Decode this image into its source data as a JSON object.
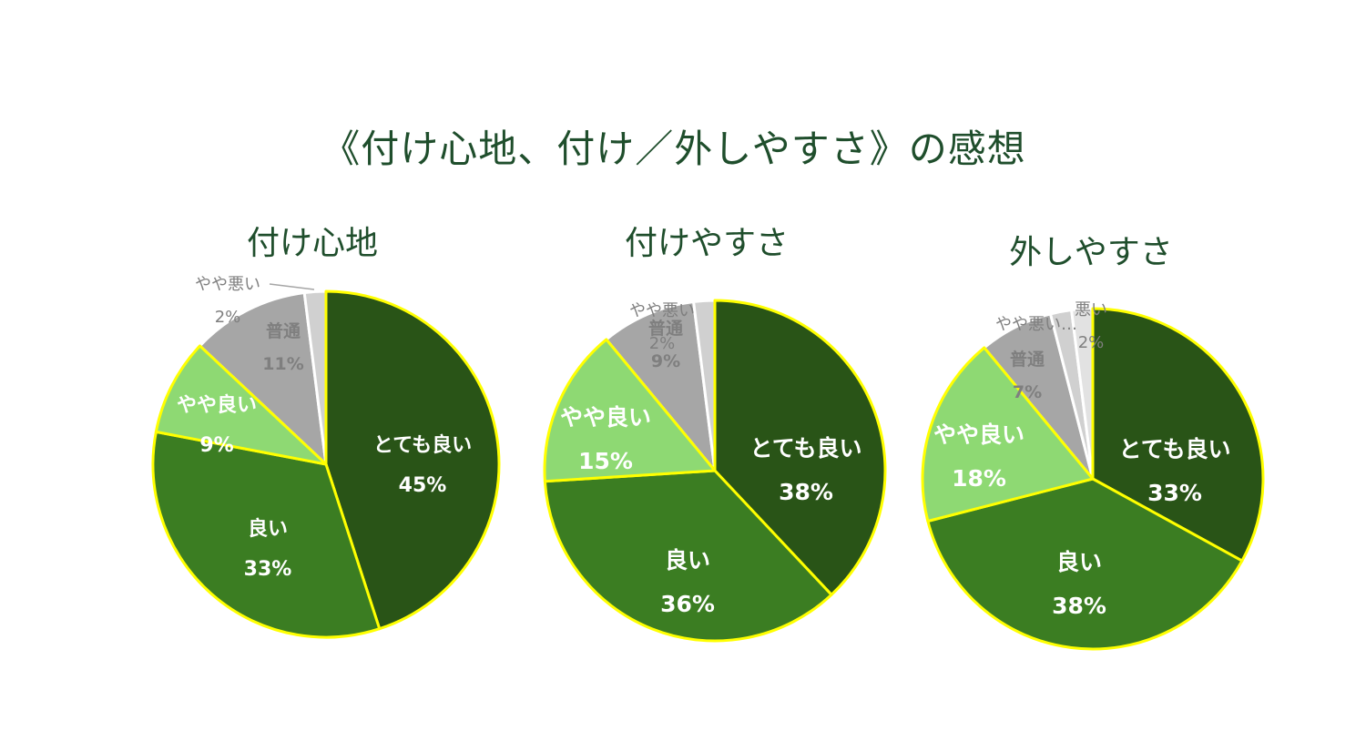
{
  "title": "《付け心地、付け／外しやすさ》の感想",
  "colors": {
    "very_good": "#295417",
    "good": "#3b7d22",
    "slightly_good": "#8ed973",
    "normal": "#a6a6a6",
    "slightly_bad": "#d0d0d0",
    "bad": "#e2e2e2",
    "slice_border_yellow": "#ffff00",
    "slice_border_white": "#ffffff"
  },
  "chart_data": [
    {
      "type": "pie",
      "title": "付け心地",
      "slices": [
        {
          "label": "とても良い",
          "value": 45,
          "value_text": "45%",
          "color_key": "very_good",
          "label_style": "inside"
        },
        {
          "label": "良い",
          "value": 33,
          "value_text": "33%",
          "color_key": "good",
          "label_style": "inside"
        },
        {
          "label": "やや良い",
          "value": 9,
          "value_text": "9%",
          "color_key": "slightly_good",
          "label_style": "inside"
        },
        {
          "label": "普通",
          "value": 11,
          "value_text": "11%",
          "color_key": "normal",
          "label_style": "gray"
        },
        {
          "label": "やや悪い",
          "value": 2,
          "value_text": "2%",
          "color_key": "slightly_bad",
          "label_style": "outside"
        }
      ]
    },
    {
      "type": "pie",
      "title": "付けやすさ",
      "slices": [
        {
          "label": "とても良い",
          "value": 38,
          "value_text": "38%",
          "color_key": "very_good",
          "label_style": "inside"
        },
        {
          "label": "良い",
          "value": 36,
          "value_text": "36%",
          "color_key": "good",
          "label_style": "inside"
        },
        {
          "label": "やや良い",
          "value": 15,
          "value_text": "15%",
          "color_key": "slightly_good",
          "label_style": "inside"
        },
        {
          "label": "普通",
          "value": 9,
          "value_text": "9%",
          "color_key": "normal",
          "label_style": "gray"
        },
        {
          "label": "やや悪い",
          "value": 2,
          "value_text": "2%",
          "color_key": "slightly_bad",
          "label_style": "outside"
        }
      ]
    },
    {
      "type": "pie",
      "title": "外しやすさ",
      "slices": [
        {
          "label": "とても良い",
          "value": 33,
          "value_text": "33%",
          "color_key": "very_good",
          "label_style": "inside"
        },
        {
          "label": "良い",
          "value": 38,
          "value_text": "38%",
          "color_key": "good",
          "label_style": "inside"
        },
        {
          "label": "やや良い",
          "value": 18,
          "value_text": "18%",
          "color_key": "slightly_good",
          "label_style": "inside"
        },
        {
          "label": "普通",
          "value": 7,
          "value_text": "7%",
          "color_key": "normal",
          "label_style": "gray"
        },
        {
          "label": "やや悪い…",
          "value": 2,
          "value_text": "",
          "color_key": "slightly_bad",
          "label_style": "outside"
        },
        {
          "label": "悪い",
          "value": 2,
          "value_text": "2%",
          "color_key": "bad",
          "label_style": "outside"
        }
      ]
    }
  ]
}
